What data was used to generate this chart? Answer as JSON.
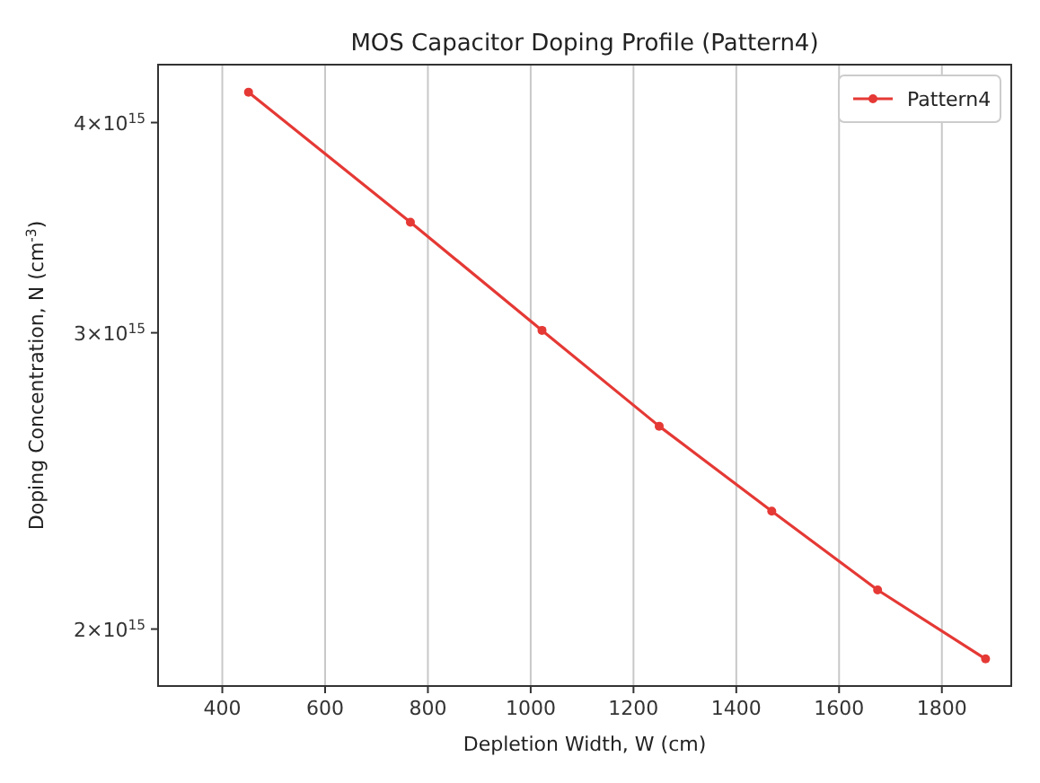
{
  "chart_data": {
    "type": "line",
    "title": "MOS Capacitor Doping Profile (Pattern4)",
    "xlabel": "Depletion Width, W (cm)",
    "ylabel": "Doping Concentration, N (cm$^{-3}$)",
    "x": [
      451,
      766,
      1022,
      1250,
      1469,
      1675,
      1885
    ],
    "series": [
      {
        "name": "Pattern4",
        "color": "#e53935",
        "values": [
          4170000000000000.0,
          3490000000000000.0,
          3010000000000000.0,
          2640000000000000.0,
          2350000000000000.0,
          2110000000000000.0,
          1920000000000000.0
        ]
      }
    ],
    "xlim": [
      275,
      1935
    ],
    "xticks": [
      400,
      600,
      800,
      1000,
      1200,
      1400,
      1600,
      1800
    ],
    "ylim": [
      1850000000000000.0,
      4330000000000000.0
    ],
    "yticks": [
      {
        "value": 2000000000000000.0,
        "label": "2×10$^{15}$"
      },
      {
        "value": 3000000000000000.0,
        "label": "3×10$^{15}$"
      },
      {
        "value": 4000000000000000.0,
        "label": "4×10$^{15}$"
      }
    ],
    "log": "y",
    "grid": "x",
    "legend": "top right",
    "marker": "circle",
    "line_style": "solid"
  }
}
